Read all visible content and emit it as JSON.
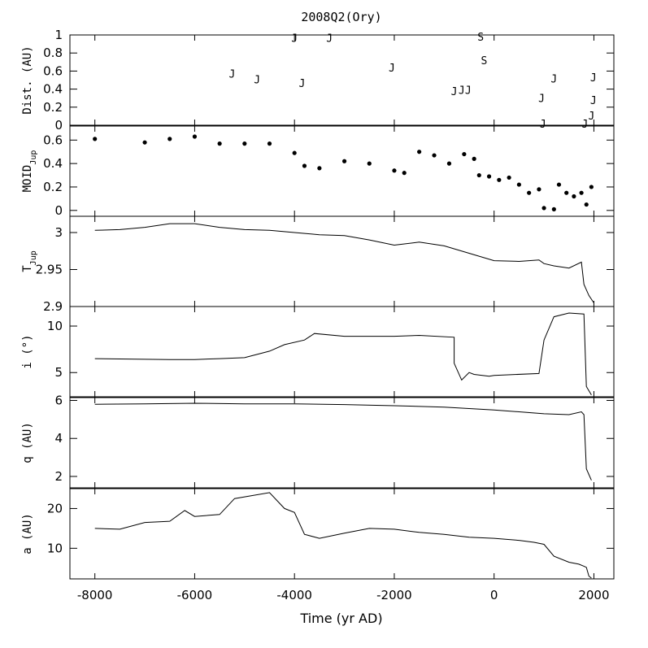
{
  "chart_data": {
    "type": "line",
    "title": "2008Q2(Ory)",
    "xlabel": "Time (yr AD)",
    "xlim": [
      -8500,
      2400
    ],
    "x_ticks": [
      -8000,
      -6000,
      -4000,
      -2000,
      0,
      2000
    ],
    "x_tick_labels": [
      "-8000",
      "-6000",
      "-4000",
      "-2000",
      "0",
      "2000"
    ],
    "panels": [
      {
        "id": "dist",
        "type": "scatter",
        "ylabel": "Dist. (AU)",
        "ylim": [
          0,
          1
        ],
        "y_ticks": [
          0,
          0.2,
          0.4,
          0.6,
          0.8,
          1
        ],
        "y_tick_labels": [
          "0",
          "0.2",
          "0.4",
          "0.6",
          "0.8",
          "1"
        ],
        "markers": [
          {
            "t": -5250,
            "d": 0.57,
            "label": "J"
          },
          {
            "t": -4750,
            "d": 0.51,
            "label": "J"
          },
          {
            "t": -4000,
            "d": 0.97,
            "label": "J"
          },
          {
            "t": -3850,
            "d": 0.47,
            "label": "J"
          },
          {
            "t": -3300,
            "d": 0.97,
            "label": "J"
          },
          {
            "t": -2050,
            "d": 0.64,
            "label": "J"
          },
          {
            "t": -800,
            "d": 0.38,
            "label": "J"
          },
          {
            "t": -650,
            "d": 0.39,
            "label": "J"
          },
          {
            "t": -520,
            "d": 0.39,
            "label": "J"
          },
          {
            "t": -270,
            "d": 0.98,
            "label": "S"
          },
          {
            "t": -200,
            "d": 0.72,
            "label": "S"
          },
          {
            "t": 950,
            "d": 0.3,
            "label": "J"
          },
          {
            "t": 980,
            "d": 0.02,
            "label": "J"
          },
          {
            "t": 1200,
            "d": 0.52,
            "label": "J"
          },
          {
            "t": 1820,
            "d": 0.02,
            "label": "J"
          },
          {
            "t": 1950,
            "d": 0.11,
            "label": "J"
          },
          {
            "t": 1990,
            "d": 0.28,
            "label": "J"
          },
          {
            "t": 1990,
            "d": 0.53,
            "label": "J"
          }
        ]
      },
      {
        "id": "moid",
        "type": "scatter",
        "ylabel": "MOID",
        "ylabel_sub": "Jup",
        "ylim": [
          -0.05,
          0.72
        ],
        "y_ticks": [
          0,
          0.2,
          0.4,
          0.6
        ],
        "y_tick_labels": [
          "0",
          "0.2",
          "0.4",
          "0.6"
        ],
        "x": [
          -8000,
          -7000,
          -6500,
          -6000,
          -5500,
          -5000,
          -4500,
          -4000,
          -3800,
          -3500,
          -3000,
          -2500,
          -2000,
          -1800,
          -1500,
          -1200,
          -900,
          -600,
          -400,
          -300,
          -100,
          100,
          300,
          500,
          700,
          900,
          1000,
          1200,
          1300,
          1450,
          1600,
          1750,
          1850,
          1950
        ],
        "y": [
          0.61,
          0.58,
          0.61,
          0.63,
          0.57,
          0.57,
          0.57,
          0.49,
          0.38,
          0.36,
          0.42,
          0.4,
          0.34,
          0.32,
          0.5,
          0.47,
          0.4,
          0.48,
          0.44,
          0.3,
          0.29,
          0.26,
          0.28,
          0.22,
          0.15,
          0.18,
          0.02,
          0.01,
          0.22,
          0.15,
          0.12,
          0.15,
          0.05,
          0.2
        ]
      },
      {
        "id": "tjup",
        "type": "line",
        "ylabel": "T",
        "ylabel_sub": "Jup",
        "ylim": [
          2.9,
          3.022
        ],
        "y_ticks": [
          2.9,
          2.95,
          3
        ],
        "y_tick_labels": [
          "2.9",
          "2.95",
          "3"
        ],
        "x": [
          -8000,
          -7500,
          -7000,
          -6500,
          -6000,
          -5500,
          -5000,
          -4500,
          -4000,
          -3500,
          -3000,
          -2500,
          -2000,
          -1500,
          -1000,
          -500,
          0,
          500,
          900,
          1000,
          1200,
          1500,
          1750,
          1800,
          1900,
          2000
        ],
        "y": [
          3.003,
          3.004,
          3.007,
          3.012,
          3.012,
          3.007,
          3.004,
          3.003,
          3.0,
          2.997,
          2.996,
          2.99,
          2.983,
          2.987,
          2.982,
          2.972,
          2.962,
          2.961,
          2.963,
          2.958,
          2.955,
          2.952,
          2.96,
          2.93,
          2.915,
          2.905
        ]
      },
      {
        "id": "incl",
        "type": "line",
        "ylabel": "i (°)",
        "ylim": [
          2.4,
          12.1
        ],
        "y_ticks": [
          5,
          10
        ],
        "y_tick_labels": [
          "5",
          "10"
        ],
        "x": [
          -8000,
          -6500,
          -6000,
          -5500,
          -5000,
          -4500,
          -4200,
          -3800,
          -3600,
          -3000,
          -2000,
          -1500,
          -800,
          -800,
          -650,
          -500,
          -400,
          -100,
          0,
          900,
          1000,
          1200,
          1500,
          1800,
          1850,
          1950
        ],
        "y": [
          6.5,
          6.4,
          6.4,
          6.5,
          6.6,
          7.3,
          8.0,
          8.5,
          9.2,
          8.9,
          8.9,
          9.0,
          8.8,
          6.0,
          4.2,
          5.0,
          4.8,
          4.6,
          4.7,
          4.9,
          8.5,
          11.0,
          11.4,
          11.3,
          3.5,
          2.6
        ]
      },
      {
        "id": "q",
        "type": "line",
        "ylabel": "q (AU)",
        "ylim": [
          1.4,
          6.15
        ],
        "y_ticks": [
          2,
          4,
          6
        ],
        "y_tick_labels": [
          "2",
          "4",
          "6"
        ],
        "x": [
          -8000,
          -7000,
          -6000,
          -5000,
          -4000,
          -3000,
          -2000,
          -1000,
          0,
          500,
          1000,
          1500,
          1750,
          1800,
          1850,
          1950
        ],
        "y": [
          5.8,
          5.82,
          5.85,
          5.82,
          5.82,
          5.78,
          5.72,
          5.65,
          5.5,
          5.4,
          5.3,
          5.25,
          5.4,
          5.25,
          2.4,
          1.8
        ]
      },
      {
        "id": "a",
        "type": "line",
        "ylabel": "a (AU)",
        "ylim": [
          2.3,
          25
        ],
        "y_ticks": [
          10,
          20
        ],
        "y_tick_labels": [
          "10",
          "20"
        ],
        "x": [
          -8000,
          -7500,
          -7000,
          -6500,
          -6200,
          -6000,
          -5500,
          -5200,
          -4500,
          -4200,
          -4000,
          -3800,
          -3500,
          -3000,
          -2500,
          -2000,
          -1500,
          -1000,
          -500,
          0,
          500,
          800,
          1000,
          1200,
          1500,
          1700,
          1800,
          1850,
          1900,
          1950
        ],
        "y": [
          15.0,
          14.8,
          16.5,
          16.8,
          19.5,
          18.0,
          18.5,
          22.5,
          24.0,
          20.0,
          19.0,
          13.5,
          12.5,
          13.8,
          15.0,
          14.8,
          14.0,
          13.5,
          12.8,
          12.5,
          12.0,
          11.5,
          11.0,
          8.0,
          6.5,
          6.0,
          5.5,
          5.2,
          3.0,
          2.5
        ]
      }
    ]
  }
}
